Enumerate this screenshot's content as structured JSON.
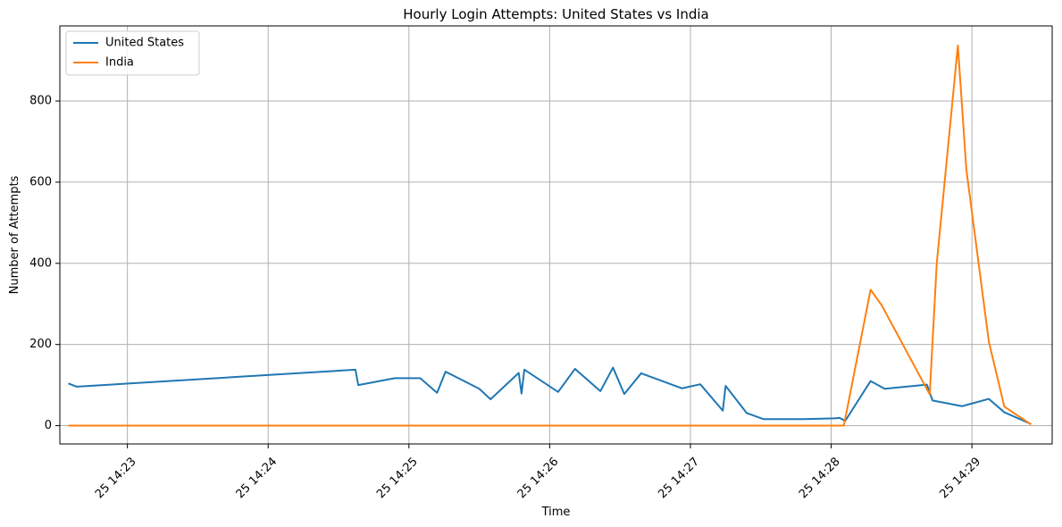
{
  "chart_data": {
    "type": "line",
    "title": "Hourly Login Attempts: United States vs India",
    "xlabel": "Time",
    "ylabel": "Number of Attempts",
    "x_axis_type": "time (minutes after 14:00)",
    "xlim": [
      22.52,
      29.57
    ],
    "ylim": [
      -45,
      985
    ],
    "x_tick_values": [
      23,
      24,
      25,
      26,
      27,
      28,
      29
    ],
    "x_tick_labels": [
      "25 14:23",
      "25 14:24",
      "25 14:25",
      "25 14:26",
      "25 14:27",
      "25 14:28",
      "25 14:29"
    ],
    "y_ticks": [
      0,
      200,
      400,
      600,
      800
    ],
    "grid": true,
    "legend_position": "top-left",
    "series": [
      {
        "name": "United States",
        "color": "#1f77b4",
        "points": [
          [
            22.58,
            104
          ],
          [
            22.64,
            96
          ],
          [
            24.62,
            138
          ],
          [
            24.64,
            100
          ],
          [
            24.9,
            117
          ],
          [
            25.08,
            117
          ],
          [
            25.2,
            81
          ],
          [
            25.26,
            133
          ],
          [
            25.5,
            91
          ],
          [
            25.58,
            65
          ],
          [
            25.78,
            130
          ],
          [
            25.8,
            79
          ],
          [
            25.82,
            138
          ],
          [
            26.06,
            83
          ],
          [
            26.18,
            140
          ],
          [
            26.36,
            85
          ],
          [
            26.45,
            143
          ],
          [
            26.53,
            78
          ],
          [
            26.65,
            129
          ],
          [
            26.94,
            92
          ],
          [
            27.07,
            102
          ],
          [
            27.23,
            37
          ],
          [
            27.25,
            98
          ],
          [
            27.4,
            31
          ],
          [
            27.52,
            16
          ],
          [
            27.8,
            16
          ],
          [
            28.02,
            18
          ],
          [
            28.06,
            19
          ],
          [
            28.1,
            12
          ],
          [
            28.28,
            110
          ],
          [
            28.38,
            91
          ],
          [
            28.68,
            101
          ],
          [
            28.72,
            62
          ],
          [
            28.93,
            48
          ],
          [
            29.12,
            66
          ],
          [
            29.23,
            33
          ],
          [
            29.42,
            4
          ]
        ]
      },
      {
        "name": "India",
        "color": "#ff7f0e",
        "points": [
          [
            22.58,
            0
          ],
          [
            28.09,
            0
          ],
          [
            28.28,
            335
          ],
          [
            28.36,
            296
          ],
          [
            28.7,
            77
          ],
          [
            28.75,
            400
          ],
          [
            28.9,
            937
          ],
          [
            28.96,
            632
          ],
          [
            29.12,
            207
          ],
          [
            29.23,
            47
          ],
          [
            29.42,
            3
          ]
        ]
      }
    ]
  }
}
